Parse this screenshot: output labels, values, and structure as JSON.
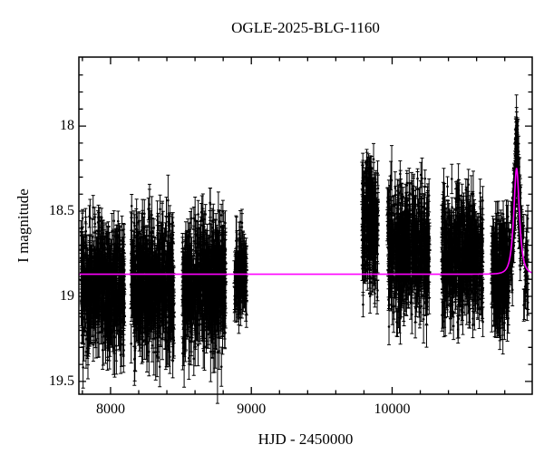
{
  "title": "OGLE-2025-BLG-1160",
  "chart_data": {
    "type": "scatter",
    "title": "OGLE-2025-BLG-1160",
    "xlabel": "HJD - 2450000",
    "ylabel": "I magnitude",
    "xlim": [
      7775,
      10995
    ],
    "ylim_mag": [
      19.575,
      17.595
    ],
    "y_axis_inverted": true,
    "grid": false,
    "point_color": "#000000",
    "model_color": "#ff00ff",
    "frame_color": "#000000",
    "x_ticks": [
      {
        "label": "8000",
        "value": 8000
      },
      {
        "label": "9000",
        "value": 9000
      },
      {
        "label": "10000",
        "value": 10000
      }
    ],
    "x_minor_step": 200,
    "y_ticks": [
      {
        "label": "18",
        "value": 18
      },
      {
        "label": "18.5",
        "value": 18.5
      },
      {
        "label": "19",
        "value": 19
      },
      {
        "label": "19.5",
        "value": 19.5
      }
    ],
    "y_minor_step": 0.1,
    "model": {
      "type": "paczynski-microlensing",
      "baseline_mag": 18.87,
      "t0": 10884,
      "tE": 30,
      "u0": 0.65,
      "peak_mag": 18.24
    },
    "seasons": [
      {
        "name": "season-2017",
        "t_start": 7790,
        "t_end": 8100,
        "n": 700,
        "mag_center": 18.93,
        "mag_sigma": 0.17,
        "mag_bright": 18.44,
        "mag_faint": 19.42
      },
      {
        "name": "season-2018",
        "t_start": 8145,
        "t_end": 8450,
        "n": 700,
        "mag_center": 18.93,
        "mag_sigma": 0.17,
        "mag_bright": 18.43,
        "mag_faint": 19.44
      },
      {
        "name": "season-2019",
        "t_start": 8510,
        "t_end": 8818,
        "n": 700,
        "mag_center": 18.92,
        "mag_sigma": 0.17,
        "mag_bright": 18.42,
        "mag_faint": 19.42
      },
      {
        "name": "season-2020",
        "t_start": 8878,
        "t_end": 8966,
        "n": 130,
        "mag_center": 18.86,
        "mag_sigma": 0.13,
        "mag_bright": 18.55,
        "mag_faint": 19.19
      },
      {
        "name": "season-2022",
        "t_start": 9786,
        "t_end": 9900,
        "n": 260,
        "mag_center": 18.6,
        "mag_sigma": 0.19,
        "mag_bright": 18.19,
        "mag_faint": 19.06
      },
      {
        "name": "season-2023",
        "t_start": 9965,
        "t_end": 10265,
        "n": 650,
        "mag_center": 18.72,
        "mag_sigma": 0.17,
        "mag_bright": 18.26,
        "mag_faint": 19.18
      },
      {
        "name": "season-2024",
        "t_start": 10352,
        "t_end": 10645,
        "n": 600,
        "mag_center": 18.77,
        "mag_sigma": 0.17,
        "mag_bright": 18.31,
        "mag_faint": 19.22
      },
      {
        "name": "season-2025-baseline",
        "t_start": 10706,
        "t_end": 10830,
        "n": 280,
        "mag_center": 18.84,
        "mag_sigma": 0.15,
        "mag_bright": 18.5,
        "mag_faint": 19.22
      }
    ],
    "event_points": {
      "name": "season-2025-event",
      "t_start": 10832,
      "t_end": 10965,
      "n": 250,
      "peak_fraction": 0.6,
      "peak_window": [
        10858,
        10912
      ],
      "noise_base": 0.06,
      "noise_wing": 0.1,
      "peak_bias": -0.12,
      "mag_bright": 17.93,
      "mag_faint": 19.18
    }
  }
}
